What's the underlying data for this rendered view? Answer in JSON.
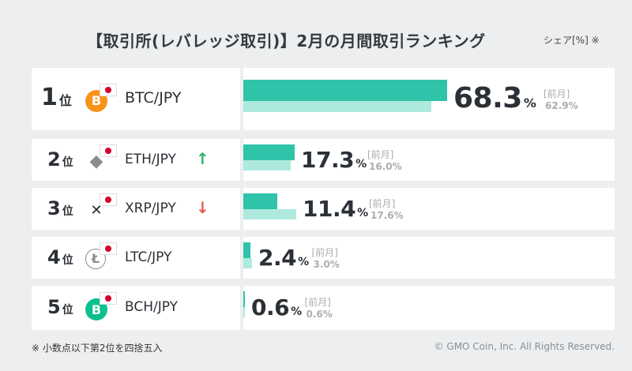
{
  "title": "【取引所(レバレッジ取引)】2月の月間取引ランキング",
  "title_unit": "シェア[%] ※",
  "footnote": "※ 小数点以下第2位を四捨五入",
  "copyright": "© GMO Coin, Inc. All Rights Reserved.",
  "prev_label": "[前月]",
  "rank_suffix": "位",
  "percent_sign": "%",
  "colors": {
    "current": "#2fc4a9",
    "previous": "#aee9dd"
  },
  "chart_data": {
    "type": "bar",
    "orientation": "horizontal",
    "title": "【取引所(レバレッジ取引)】2月の月間取引ランキング",
    "categories": [
      "BTC/JPY",
      "ETH/JPY",
      "XRP/JPY",
      "LTC/JPY",
      "BCH/JPY"
    ],
    "series": [
      {
        "name": "2月",
        "values": [
          68.3,
          17.3,
          11.4,
          2.4,
          0.6
        ]
      },
      {
        "name": "前月",
        "values": [
          62.9,
          16.0,
          17.6,
          3.0,
          0.6
        ]
      }
    ],
    "unit": "%",
    "xlim": [
      0,
      100
    ]
  },
  "rows": [
    {
      "rank": "1",
      "pair": "BTC/JPY",
      "coin": "B",
      "coin_icon": "bitcoin-icon",
      "coin_color": "#f7931a",
      "current": "68.3",
      "previous": "62.9",
      "trend": ""
    },
    {
      "rank": "2",
      "pair": "ETH/JPY",
      "coin": "◆",
      "coin_icon": "ethereum-icon",
      "coin_color": "#8c8c8c",
      "current": "17.3",
      "previous": "16.0",
      "trend": "up"
    },
    {
      "rank": "3",
      "pair": "XRP/JPY",
      "coin": "✕",
      "coin_icon": "xrp-icon",
      "coin_color": "#23292f",
      "current": "11.4",
      "previous": "17.6",
      "trend": "down"
    },
    {
      "rank": "4",
      "pair": "LTC/JPY",
      "coin": "Ł",
      "coin_icon": "litecoin-icon",
      "coin_color": "#a6a9aa",
      "current": "2.4",
      "previous": "3.0",
      "trend": ""
    },
    {
      "rank": "5",
      "pair": "BCH/JPY",
      "coin": "B",
      "coin_icon": "bitcoin-cash-icon",
      "coin_color": "#0ac18e",
      "current": "0.6",
      "previous": "0.6",
      "trend": ""
    }
  ]
}
